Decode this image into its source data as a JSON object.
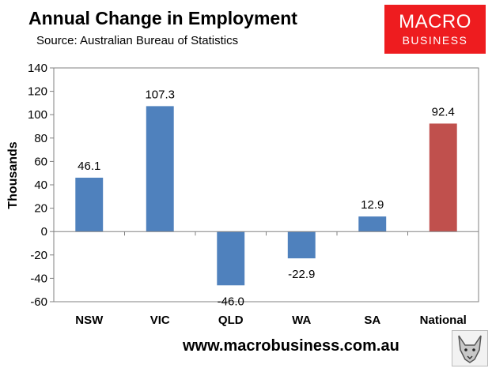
{
  "header": {
    "title": "Annual Change in Employment",
    "subtitle": "Source: Australian Bureau of Statistics"
  },
  "logo": {
    "line1": "MACRO",
    "line2": "BUSINESS",
    "color": "#ee1c1f"
  },
  "footer": {
    "url": "www.macrobusiness.com.au"
  },
  "colors": {
    "state_bar": "#4f81bd",
    "national_bar": "#c0504d"
  },
  "chart_data": {
    "type": "bar",
    "categories": [
      "NSW",
      "VIC",
      "QLD",
      "WA",
      "SA",
      "National"
    ],
    "values": [
      46.1,
      107.3,
      -46.0,
      -22.9,
      12.9,
      92.4
    ],
    "data_labels": [
      "46.1",
      "107.3",
      "-46.0",
      "-22.9",
      "12.9",
      "92.4"
    ],
    "bar_colors": [
      "#4f81bd",
      "#4f81bd",
      "#4f81bd",
      "#4f81bd",
      "#4f81bd",
      "#c0504d"
    ],
    "ylabel": "Thousands",
    "xlabel": "",
    "ylim": [
      -60,
      140
    ],
    "yticks": [
      -60,
      -40,
      -20,
      0,
      20,
      40,
      60,
      80,
      100,
      120,
      140
    ],
    "grid": false,
    "legend": false
  }
}
